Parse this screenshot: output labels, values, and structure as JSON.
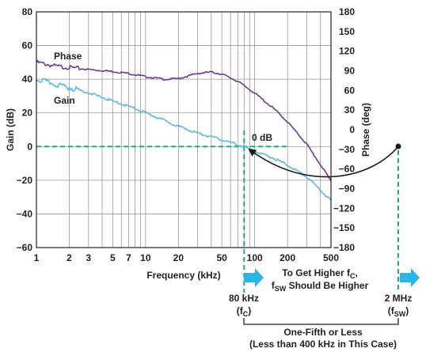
{
  "chart_data": {
    "type": "line",
    "x_scale": "log",
    "xlabel": "Frequency (kHz)",
    "ylabel_left": "Gain (dB)",
    "ylabel_right": "Phase (deg)",
    "xlim": [
      1,
      500
    ],
    "ylim_left": [
      -60,
      80
    ],
    "ylim_right": [
      -180,
      180
    ],
    "x_ticks": [
      "1",
      "2",
      "3",
      "5",
      "7",
      "10",
      "20",
      "50",
      "100",
      "200",
      "500"
    ],
    "x_tick_values": [
      1,
      2,
      3,
      5,
      7,
      10,
      20,
      50,
      100,
      200,
      500
    ],
    "y_ticks_left": [
      "80",
      "60",
      "40",
      "20",
      "0",
      "−20",
      "−40",
      "−60"
    ],
    "y_tick_values_left": [
      80,
      60,
      40,
      20,
      0,
      -20,
      -40,
      -60
    ],
    "y_ticks_right": [
      "180",
      "150",
      "120",
      "90",
      "60",
      "30",
      "0",
      "−30",
      "−60",
      "−90",
      "−120",
      "−150",
      "−180"
    ],
    "y_tick_values_right": [
      180,
      150,
      120,
      90,
      60,
      30,
      0,
      -30,
      -60,
      -90,
      -120,
      -150,
      -180
    ],
    "grid": true,
    "series": [
      {
        "name": "Phase",
        "axis": "right",
        "color": "#6b3d8f",
        "x": [
          1,
          1.5,
          2,
          3,
          5,
          7,
          10,
          15,
          20,
          30,
          40,
          50,
          70,
          100,
          150,
          200,
          300,
          500
        ],
        "values": [
          103,
          97,
          95,
          92,
          89,
          86,
          81,
          77,
          78,
          86,
          88,
          85,
          74,
          56,
          32,
          12,
          -22,
          -78
        ]
      },
      {
        "name": "Gain",
        "axis": "left",
        "color": "#5fb7e0",
        "x": [
          1,
          1.5,
          2,
          3,
          5,
          7,
          10,
          15,
          20,
          30,
          50,
          70,
          80,
          100,
          150,
          200,
          300,
          500
        ],
        "values": [
          40,
          37,
          35,
          32,
          27,
          24,
          20,
          15.5,
          12,
          8,
          4,
          1,
          0,
          -3,
          -7,
          -11,
          -18,
          -32
        ]
      }
    ],
    "reference_lines": [
      {
        "type": "horizontal",
        "axis": "left",
        "value": 0,
        "x_range": [
          1,
          200
        ],
        "color": "#2aa876"
      },
      {
        "type": "vertical",
        "value": 80,
        "color": "#2aa876"
      }
    ],
    "annotations": {
      "zero_db": "0 dB",
      "fc_freq": "80 kHz",
      "fc_label": "(f",
      "fc_sub": "C",
      "fc_close": ")",
      "fsw_freq": "2 MHz",
      "fsw_label": "(f",
      "fsw_sub": "SW",
      "fsw_close": ")",
      "higher_line1_a": "To Get Higher f",
      "higher_line1_sub": "C",
      "higher_line1_b": ",",
      "higher_line2_a": "f",
      "higher_line2_sub": "SW",
      "higher_line2_b": " Should Be Higher",
      "ratio_line1": "One-Fifth or Less",
      "ratio_line2": "(Less than 400 kHz in This Case)"
    },
    "colors": {
      "grid": "#9a9a9a",
      "axis": "#222222",
      "reference": "#2aa876",
      "arrow_fill": "#29b6e8",
      "curve_arrow": "#1a1a1a"
    }
  }
}
